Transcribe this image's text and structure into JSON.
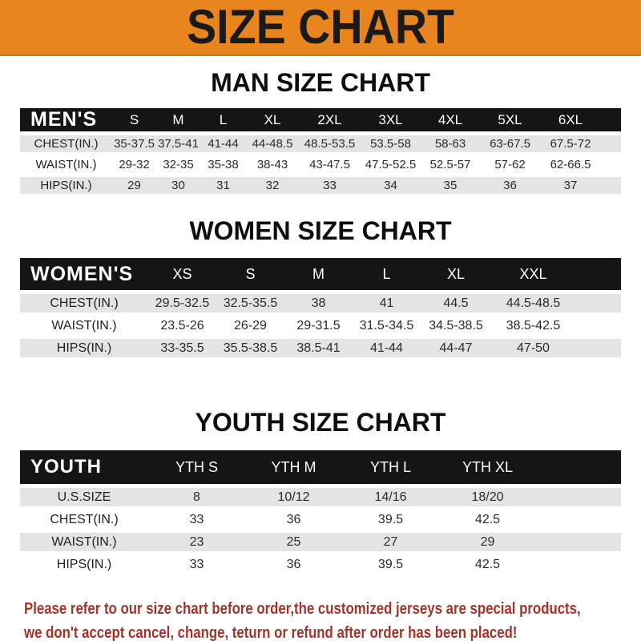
{
  "banner": {
    "title": "SIZE CHART"
  },
  "sections": [
    {
      "heading": "MAN SIZE CHART",
      "table": {
        "label": "MEN'S",
        "columns": [
          "S",
          "M",
          "L",
          "XL",
          "2XL",
          "3XL",
          "4XL",
          "5XL",
          "6XL"
        ],
        "rows": [
          {
            "label": "CHEST(IN.)",
            "values": [
              "35-37.5",
              "37.5-41",
              "41-44",
              "44-48.5",
              "48.5-53.5",
              "53.5-58",
              "58-63",
              "63-67.5",
              "67.5-72"
            ]
          },
          {
            "label": "WAIST(IN.)",
            "values": [
              "29-32",
              "32-35",
              "35-38",
              "38-43",
              "43-47.5",
              "47.5-52.5",
              "52.5-57",
              "57-62",
              "62-66.5"
            ]
          },
          {
            "label": "HIPS(IN.)",
            "values": [
              "29",
              "30",
              "31",
              "32",
              "33",
              "34",
              "35",
              "36",
              "37"
            ]
          }
        ]
      }
    },
    {
      "heading": "WOMEN SIZE CHART",
      "table": {
        "label": "WOMEN'S",
        "columns": [
          "XS",
          "S",
          "M",
          "L",
          "XL",
          "XXL"
        ],
        "rows": [
          {
            "label": "CHEST(IN.)",
            "values": [
              "29.5-32.5",
              "32.5-35.5",
              "38",
              "41",
              "44.5",
              "44.5-48.5"
            ]
          },
          {
            "label": "WAIST(IN.)",
            "values": [
              "23.5-26",
              "26-29",
              "29-31.5",
              "31.5-34.5",
              "34.5-38.5",
              "38.5-42.5"
            ]
          },
          {
            "label": "HIPS(IN.)",
            "values": [
              "33-35.5",
              "35.5-38.5",
              "38.5-41",
              "41-44",
              "44-47",
              "47-50"
            ]
          }
        ]
      }
    },
    {
      "heading": "YOUTH SIZE CHART",
      "table": {
        "label": "YOUTH",
        "columns": [
          "YTH S",
          "YTH M",
          "YTH L",
          "YTH XL"
        ],
        "rows": [
          {
            "label": "U.S.SIZE",
            "values": [
              "8",
              "10/12",
              "14/16",
              "18/20"
            ]
          },
          {
            "label": "CHEST(IN.)",
            "values": [
              "33",
              "36",
              "39.5",
              "42.5"
            ]
          },
          {
            "label": "WAIST(IN.)",
            "values": [
              "23",
              "25",
              "27",
              "29"
            ]
          },
          {
            "label": "HIPS(IN.)",
            "values": [
              "33",
              "36",
              "39.5",
              "42.5"
            ]
          }
        ]
      }
    }
  ],
  "footer": {
    "lines": [
      "Please refer to our size chart before order,the customized jerseys are special products,",
      "we don't accept cancel, change, teturn or refund after order has been placed!"
    ]
  },
  "colors": {
    "banner_bg": "#E8851E",
    "banner_text": "#1A1A1A",
    "bar_bg": "#151515",
    "bar_text": "#FFFFFF",
    "row_alt_bg": "#E5E4E4",
    "body_text": "#2B2B2B",
    "note_text": "#A3342B"
  }
}
